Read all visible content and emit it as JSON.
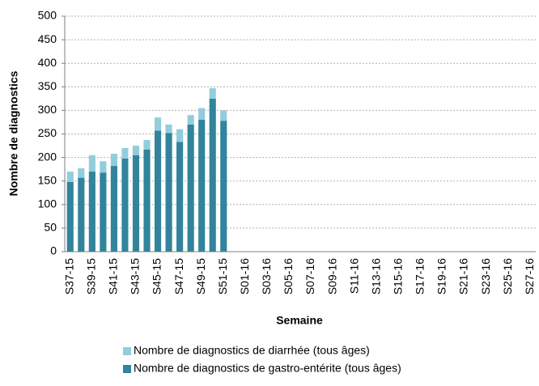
{
  "chart_data": {
    "type": "bar",
    "stacked": true,
    "y_label": "Nombre de diagnostics",
    "x_label": "Semaine",
    "categories": [
      "S37-15",
      null,
      "S39-15",
      null,
      "S41-15",
      null,
      "S43-15",
      null,
      "S45-15",
      null,
      "S47-15",
      null,
      "S49-15",
      null,
      "S51-15",
      null,
      "S01-16",
      null,
      "S03-16",
      null,
      "S05-16",
      null,
      "S07-16",
      null,
      "S09-16",
      null,
      "S11-16",
      null,
      "S13-16",
      null,
      "S15-16",
      null,
      "S17-16",
      null,
      "S19-16",
      null,
      "S21-16",
      null,
      "S23-16",
      null,
      "S25-16",
      null,
      "S27-16"
    ],
    "series": [
      {
        "name": "Nombre de diagnostics de diarrhée (tous âges)",
        "color": "#92cddc",
        "values": [
          22,
          20,
          35,
          24,
          26,
          22,
          20,
          20,
          28,
          18,
          27,
          20,
          25,
          22,
          22,
          null,
          null,
          null,
          null,
          null,
          null,
          null,
          null,
          null,
          null,
          null,
          null,
          null,
          null,
          null,
          null,
          null,
          null,
          null,
          null,
          null,
          null,
          null,
          null,
          null,
          null,
          null,
          null
        ]
      },
      {
        "name": "Nombre de diagnostics de gastro-entérite (tous âges)",
        "color": "#31849b",
        "values": [
          148,
          157,
          170,
          168,
          182,
          198,
          205,
          217,
          257,
          252,
          233,
          270,
          280,
          325,
          278,
          null,
          null,
          null,
          null,
          null,
          null,
          null,
          null,
          null,
          null,
          null,
          null,
          null,
          null,
          null,
          null,
          null,
          null,
          null,
          null,
          null,
          null,
          null,
          null,
          null,
          null,
          null,
          null
        ]
      }
    ],
    "ylim": [
      0,
      500
    ],
    "yticks": [
      0,
      50,
      100,
      150,
      200,
      250,
      300,
      350,
      400,
      450,
      500
    ],
    "grid": true
  }
}
